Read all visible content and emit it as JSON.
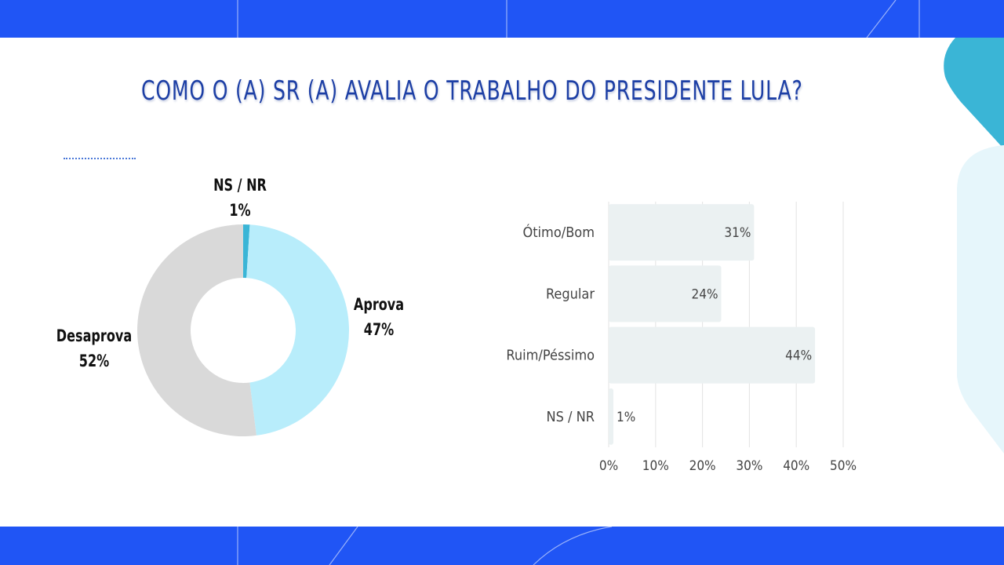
{
  "title": "COMO O (A) SR (A) AVALIA O TRABALHO DO PRESIDENTE LULA?",
  "colors": {
    "band": "#2055f5",
    "title": "#1d3fa5",
    "aprova": "#b8edfb",
    "desaprova": "#d9d9d9",
    "nsnr": "#3ab5d6",
    "bar": "#ebf1f2",
    "grid": "#e3e3e3",
    "deco_dark": "#3ab5d6",
    "deco_light": "#e6f6fb"
  },
  "chart_data": [
    {
      "type": "pie",
      "donut": true,
      "slices": [
        {
          "name": "Aprova",
          "value": 47,
          "label": "47%",
          "color": "#b8edfb"
        },
        {
          "name": "Desaprova",
          "value": 52,
          "label": "52%",
          "color": "#d9d9d9"
        },
        {
          "name": "NS / NR",
          "value": 1,
          "label": "1%",
          "color": "#3ab5d6"
        }
      ]
    },
    {
      "type": "bar",
      "orientation": "horizontal",
      "categories": [
        "Ótimo/Bom",
        "Regular",
        "Ruim/Péssimo",
        "NS / NR"
      ],
      "values": [
        31,
        24,
        44,
        1
      ],
      "value_labels": [
        "31%",
        "24%",
        "44%",
        "1%"
      ],
      "xlim": [
        0,
        50
      ],
      "ticks": [
        "0%",
        "10%",
        "20%",
        "30%",
        "40%",
        "50%"
      ],
      "grid": true
    }
  ]
}
